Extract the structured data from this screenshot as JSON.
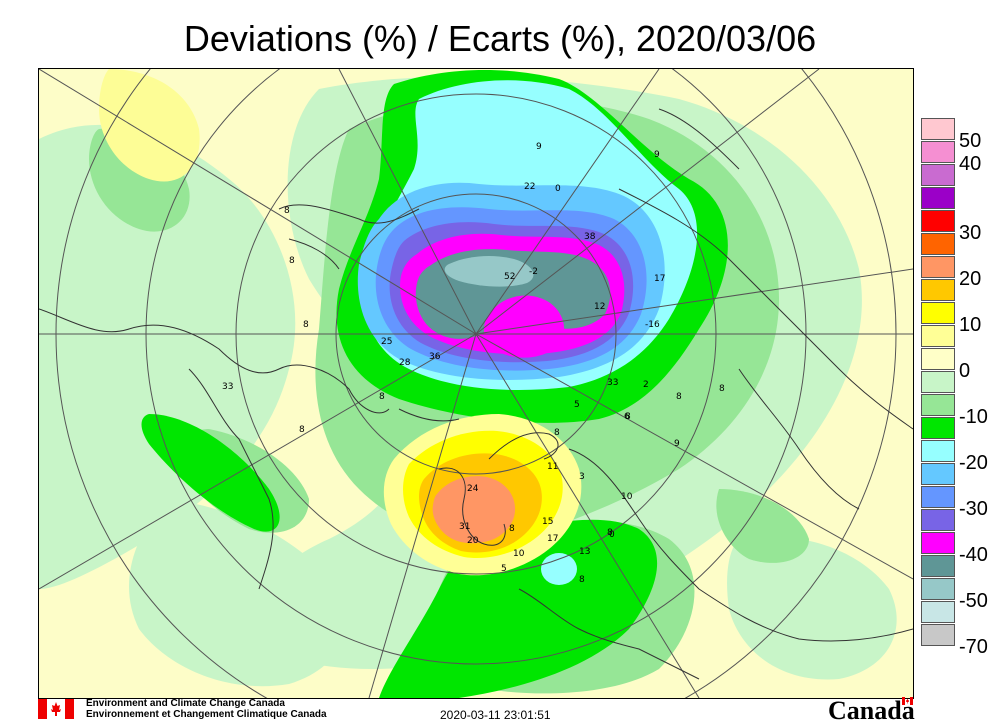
{
  "title": "Deviations (%) / Ecarts (%), 2020/03/06",
  "legend": {
    "items": [
      {
        "label": "50",
        "color": "#ffc8d0"
      },
      {
        "label": "40",
        "color": "#f58fd2"
      },
      {
        "label": "",
        "color": "#c96bd0"
      },
      {
        "label": "",
        "color": "#9b00c8"
      },
      {
        "label": "30",
        "color": "#ff0000"
      },
      {
        "label": "",
        "color": "#ff6400"
      },
      {
        "label": "20",
        "color": "#ff9664"
      },
      {
        "label": "",
        "color": "#ffc800"
      },
      {
        "label": "10",
        "color": "#ffff00"
      },
      {
        "label": "",
        "color": "#ffff96"
      },
      {
        "label": "0",
        "color": "#ffffc8"
      },
      {
        "label": "",
        "color": "#c8f5c8"
      },
      {
        "label": "-10",
        "color": "#96e696"
      },
      {
        "label": "",
        "color": "#00e600"
      },
      {
        "label": "-20",
        "color": "#96ffff"
      },
      {
        "label": "",
        "color": "#64c8ff"
      },
      {
        "label": "-30",
        "color": "#6496ff"
      },
      {
        "label": "",
        "color": "#7864e6"
      },
      {
        "label": "-40",
        "color": "#ff00ff"
      },
      {
        "label": "",
        "color": "#5f9696"
      },
      {
        "label": "-50",
        "color": "#96c8c8"
      },
      {
        "label": "",
        "color": "#c8e6e6"
      },
      {
        "label": "-70",
        "color": "#c8c8c8"
      }
    ]
  },
  "station_labels": [
    "8",
    "8",
    "8",
    "8",
    "8",
    "8",
    "8",
    "8",
    "8",
    "9",
    "9",
    "9",
    "0",
    "-2",
    "22",
    "36",
    "17",
    "12",
    "38",
    "25",
    "52",
    "-16",
    "33",
    "2",
    "5",
    "6",
    "3",
    "10",
    "11",
    "24",
    "31",
    "20",
    "15",
    "17",
    "13",
    "10",
    "5",
    "8",
    "0",
    "8",
    "8",
    "28",
    "33"
  ],
  "footer": {
    "agency_en": "Environment and Climate Change Canada",
    "agency_fr": "Environnement et Changement Climatique Canada",
    "timestamp": "2020-03-11 23:01:51",
    "wordmark": "Canada"
  }
}
